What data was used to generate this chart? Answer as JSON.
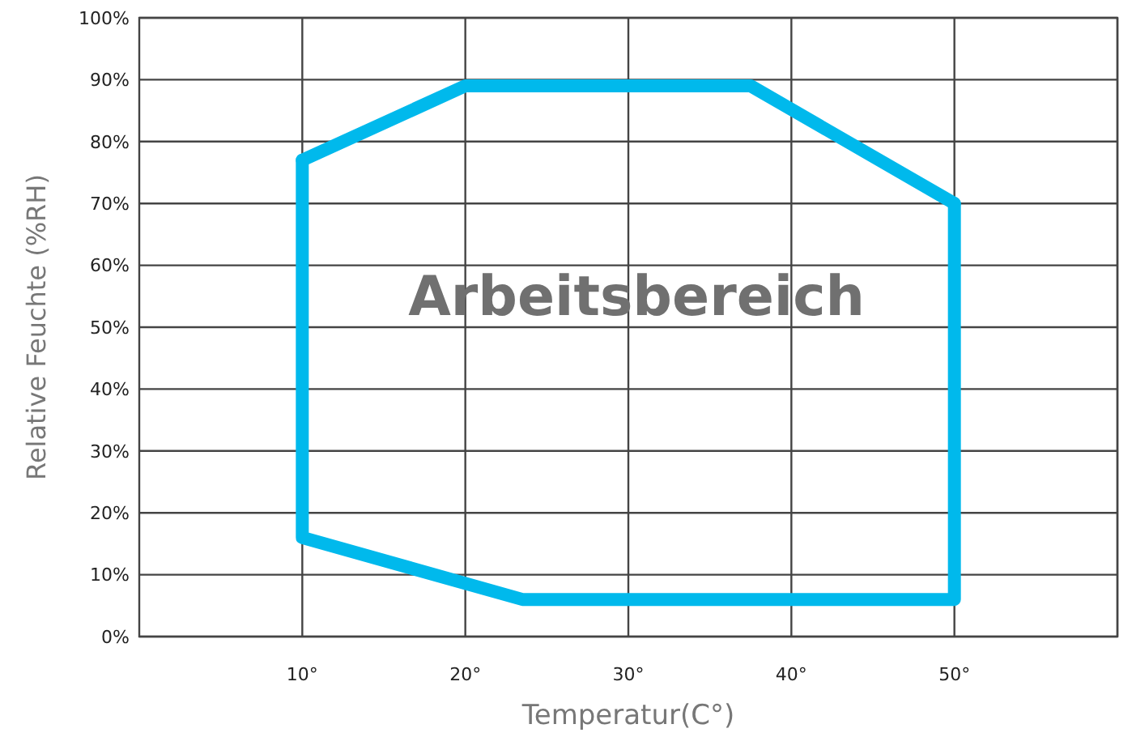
{
  "chart_data": {
    "type": "line",
    "xlabel": "Temperatur(C°)",
    "ylabel": "Relative Feuchte (%RH)",
    "series": [
      {
        "color": "#00b9ec",
        "x": [
          10,
          20,
          37.5,
          50
        ],
        "values": [
          77,
          89,
          89,
          70
        ]
      },
      {
        "color": "#00b9ec",
        "x": [
          10,
          10,
          23.5,
          50,
          50
        ],
        "values": [
          77,
          16,
          6,
          6,
          70
        ]
      }
    ],
    "xlim": [
      0,
      60
    ],
    "ylim": [
      0,
      100
    ],
    "xticks": [
      {
        "value": 10,
        "label": "10°"
      },
      {
        "value": 20,
        "label": "20°"
      },
      {
        "value": 30,
        "label": "30°"
      },
      {
        "value": 40,
        "label": "40°"
      },
      {
        "value": 50,
        "label": "50°"
      },
      {
        "value": 60,
        "label": null
      }
    ],
    "yticks": [
      {
        "value": 0,
        "label": "0%"
      },
      {
        "value": 10,
        "label": "10%"
      },
      {
        "value": 20,
        "label": "20%"
      },
      {
        "value": 30,
        "label": "30%"
      },
      {
        "value": 40,
        "label": "40%"
      },
      {
        "value": 50,
        "label": "50%"
      },
      {
        "value": 60,
        "label": "60%"
      },
      {
        "value": 70,
        "label": "70%"
      },
      {
        "value": 80,
        "label": "80%"
      },
      {
        "value": 90,
        "label": "90%"
      },
      {
        "value": 100,
        "label": "100%"
      }
    ],
    "grid": true,
    "marker": "none",
    "line_style": "solid",
    "annotations": [
      "Arbeitsbereich"
    ]
  }
}
